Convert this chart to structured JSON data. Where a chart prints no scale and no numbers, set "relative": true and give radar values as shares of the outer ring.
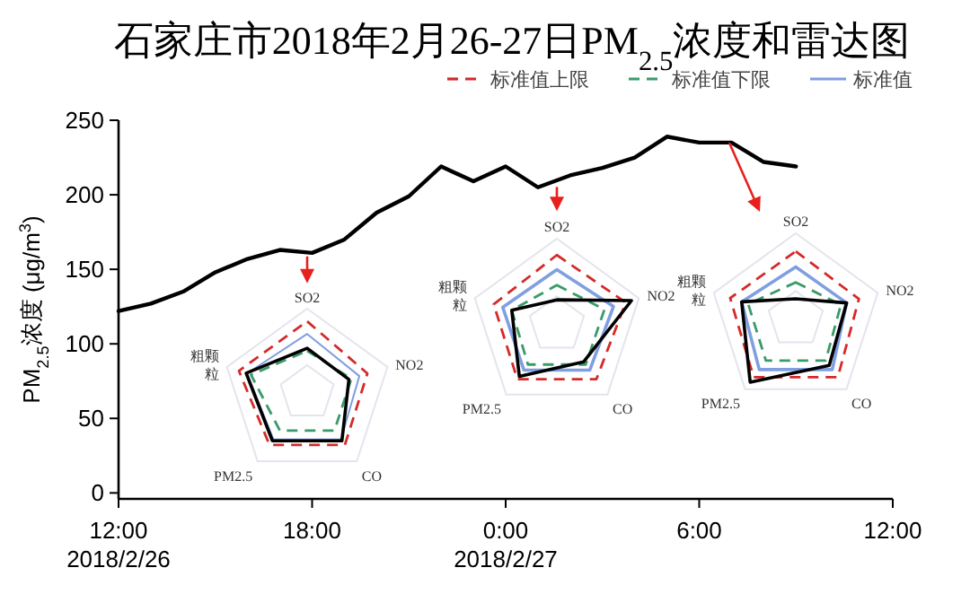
{
  "chart_data": [
    {
      "type": "line",
      "title": "石家庄市2018年2月26-27日PM$_{2.5}$浓度和雷达图",
      "ylabel": "PM$_{2.5}$浓度 (μg/m$^{3}$)",
      "x": [
        "2018-02-26T12:00",
        "2018-02-26T13:00",
        "2018-02-26T14:00",
        "2018-02-26T15:00",
        "2018-02-26T16:00",
        "2018-02-26T17:00",
        "2018-02-26T18:00",
        "2018-02-26T19:00",
        "2018-02-26T20:00",
        "2018-02-26T21:00",
        "2018-02-26T22:00",
        "2018-02-26T23:00",
        "2018-02-27T00:00",
        "2018-02-27T01:00",
        "2018-02-27T02:00",
        "2018-02-27T03:00",
        "2018-02-27T04:00",
        "2018-02-27T05:00",
        "2018-02-27T06:00",
        "2018-02-27T07:00",
        "2018-02-27T08:00",
        "2018-02-27T09:00"
      ],
      "series": [
        {
          "color": "#000000",
          "values": [
            122,
            127,
            135,
            148,
            157,
            163,
            161,
            170,
            188,
            199,
            219,
            209,
            219,
            205,
            213,
            218,
            225,
            239,
            235,
            235,
            222,
            219
          ]
        }
      ],
      "xlim": [
        "2018-02-26T12:00",
        "2018-02-27T12:00"
      ],
      "xticks": [
        {
          "value": "2018-02-26T12:00",
          "label": "12:00\n2018/2/26"
        },
        {
          "value": "2018-02-26T18:00",
          "label": "18:00"
        },
        {
          "value": "2018-02-27T00:00",
          "label": "0:00\n2018/2/27"
        },
        {
          "value": "2018-02-27T06:00",
          "label": "6:00"
        },
        {
          "value": "2018-02-27T12:00",
          "label": "12:00"
        }
      ],
      "ylim": [
        -4,
        250
      ],
      "yticks": [
        0,
        50,
        100,
        150,
        200,
        250
      ]
    },
    {
      "type": "radar",
      "relative": true,
      "legend": "top right",
      "categories": [
        "SO2",
        "NO2",
        "CO",
        "PM2.5",
        "粗颗粒"
      ],
      "series": [
        {
          "name": "标准值上限",
          "color": "#d42a2a",
          "line_style": "dashed",
          "values": [
            0.85,
            0.75,
            0.76,
            0.76,
            0.85
          ]
        },
        {
          "name": "标准值下限",
          "color": "#3a9a6a",
          "line_style": "dashed",
          "values": [
            0.5,
            0.55,
            0.55,
            0.55,
            0.7
          ]
        },
        {
          "name": "标准值",
          "color": "#7f9fe0",
          "line_style": "solid",
          "values": [
            0.7,
            0.65,
            0.68,
            0.68,
            0.75
          ]
        },
        {
          "color": "#000000",
          "line_style": "solid",
          "values": [
            0.53,
            0.52,
            0.7,
            0.7,
            0.76
          ]
        }
      ]
    },
    {
      "type": "radar",
      "relative": true,
      "categories": [
        "SO2",
        "NO2",
        "CO",
        "PM2.5",
        "粗颗粒"
      ],
      "series": [
        {
          "color": "#d42a2a",
          "line_style": "dashed",
          "values": [
            0.81,
            0.84,
            0.78,
            0.78,
            0.77
          ]
        },
        {
          "color": "#3a9a6a",
          "line_style": "dashed",
          "values": [
            0.46,
            0.58,
            0.57,
            0.57,
            0.55
          ]
        },
        {
          "color": "#7f9fe0",
          "line_style": "solid",
          "values": [
            0.64,
            0.69,
            0.65,
            0.65,
            0.66
          ]
        },
        {
          "color": "#000000",
          "line_style": "solid",
          "values": [
            0.29,
            0.91,
            0.53,
            0.74,
            0.55
          ]
        }
      ]
    },
    {
      "type": "radar",
      "relative": true,
      "categories": [
        "SO2",
        "NO2",
        "CO",
        "PM2.5",
        "粗颗粒"
      ],
      "series": [
        {
          "color": "#d42a2a",
          "line_style": "dashed",
          "values": [
            0.79,
            0.77,
            0.83,
            0.83,
            0.8
          ]
        },
        {
          "color": "#3a9a6a",
          "line_style": "dashed",
          "values": [
            0.43,
            0.55,
            0.59,
            0.59,
            0.58
          ]
        },
        {
          "color": "#7f9fe0",
          "line_style": "solid",
          "values": [
            0.61,
            0.62,
            0.72,
            0.72,
            0.66
          ]
        },
        {
          "color": "#000000",
          "line_style": "solid",
          "values": [
            0.24,
            0.62,
            0.66,
            0.9,
            0.66
          ]
        }
      ]
    }
  ]
}
